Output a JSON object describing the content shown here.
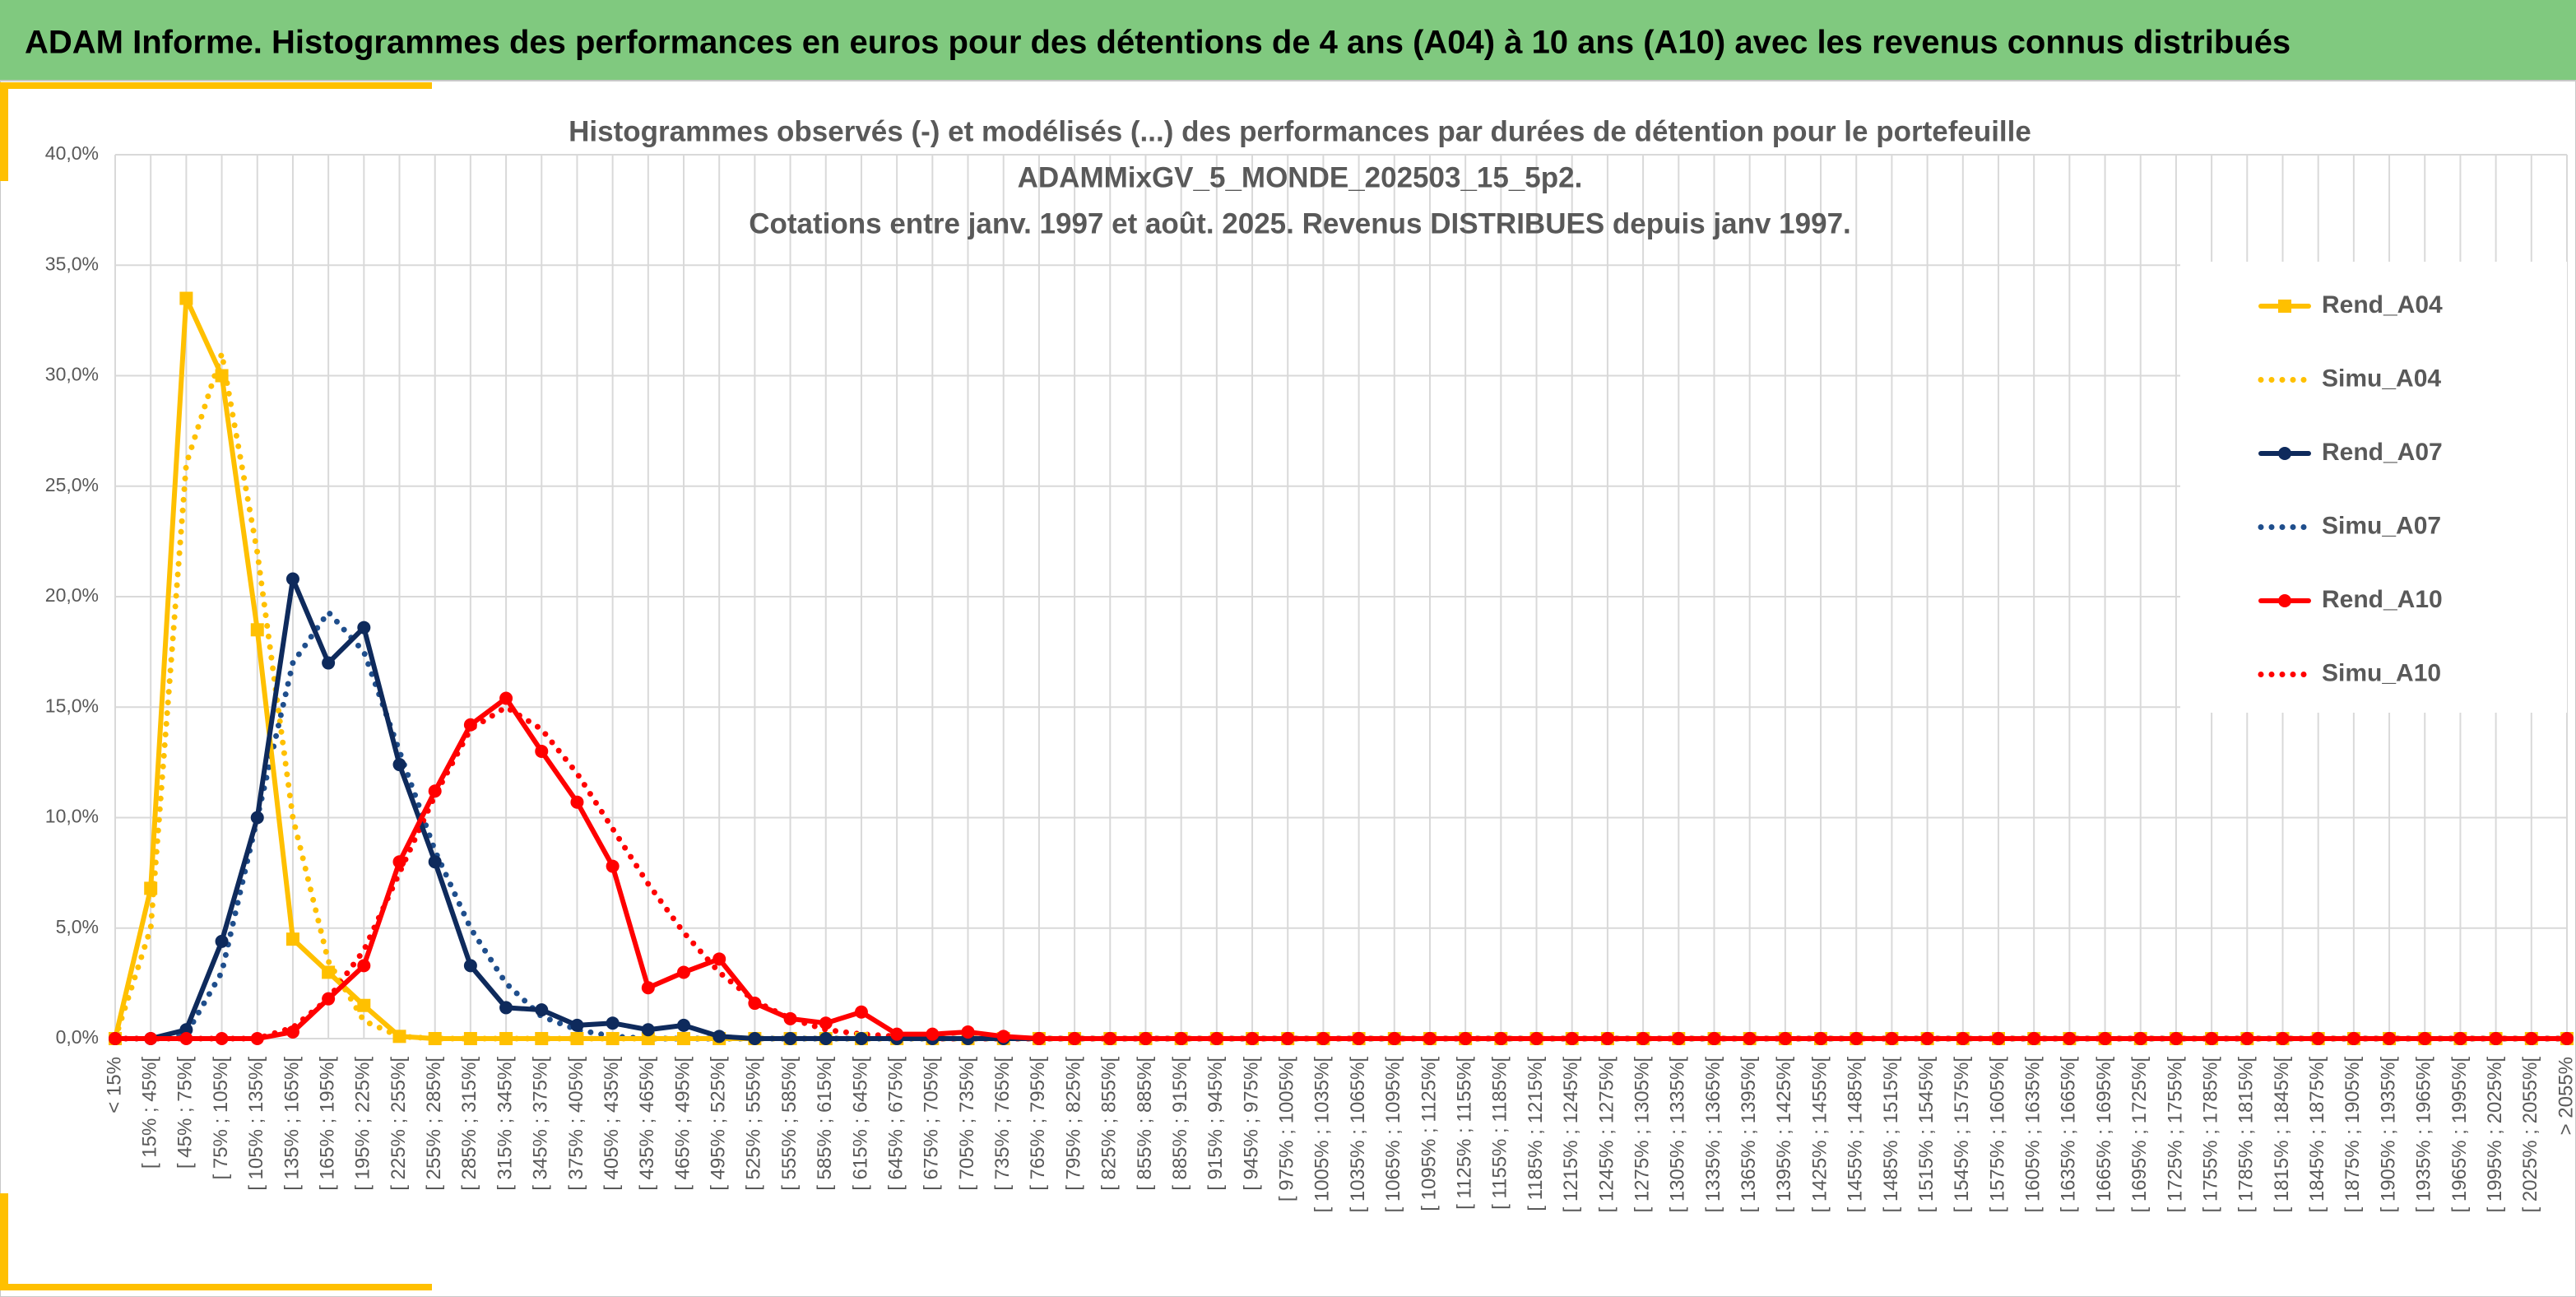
{
  "header": "ADAM Informe. Histogrammes des performances en euros pour des détentions de 4 ans (A04) à 10 ans (A10) avec les revenus connus distribués",
  "chart_data": {
    "type": "line",
    "title": [
      "Histogrammes observés (-) et modélisés (...) des performances par durées de détention pour le portefeuille",
      "ADAMMixGV_5_MONDE_202503_15_5p2.",
      "Cotations entre janv. 1997 et août. 2025. Revenus DISTRIBUES depuis janv 1997."
    ],
    "categories": [
      "< 15%",
      "[ 15% ; 45%[",
      "[ 45% ; 75%[",
      "[ 75% ; 105%[",
      "[ 105% ; 135%[",
      "[ 135% ; 165%[",
      "[ 165% ; 195%[",
      "[ 195% ; 225%[",
      "[ 225% ; 255%[",
      "[ 255% ; 285%[",
      "[ 285% ; 315%[",
      "[ 315% ; 345%[",
      "[ 345% ; 375%[",
      "[ 375% ; 405%[",
      "[ 405% ; 435%[",
      "[ 435% ; 465%[",
      "[ 465% ; 495%[",
      "[ 495% ; 525%[",
      "[ 525% ; 555%[",
      "[ 555% ; 585%[",
      "[ 585% ; 615%[",
      "[ 615% ; 645%[",
      "[ 645% ; 675%[",
      "[ 675% ; 705%[",
      "[ 705% ; 735%[",
      "[ 735% ; 765%[",
      "[ 765% ; 795%[",
      "[ 795% ; 825%[",
      "[ 825% ; 855%[",
      "[ 855% ; 885%[",
      "[ 885% ; 915%[",
      "[ 915% ; 945%[",
      "[ 945% ; 975%[",
      "[ 975% ; 1005%[",
      "[ 1005% ; 1035%[",
      "[ 1035% ; 1065%[",
      "[ 1065% ; 1095%[",
      "[ 1095% ; 1125%[",
      "[ 1125% ; 1155%[",
      "[ 1155% ; 1185%[",
      "[ 1185% ; 1215%[",
      "[ 1215% ; 1245%[",
      "[ 1245% ; 1275%[",
      "[ 1275% ; 1305%[",
      "[ 1305% ; 1335%[",
      "[ 1335% ; 1365%[",
      "[ 1365% ; 1395%[",
      "[ 1395% ; 1425%[",
      "[ 1425% ; 1455%[",
      "[ 1455% ; 1485%[",
      "[ 1485% ; 1515%[",
      "[ 1515% ; 1545%[",
      "[ 1545% ; 1575%[",
      "[ 1575% ; 1605%[",
      "[ 1605% ; 1635%[",
      "[ 1635% ; 1665%[",
      "[ 1665% ; 1695%[",
      "[ 1695% ; 1725%[",
      "[ 1725% ; 1755%[",
      "[ 1755% ; 1785%[",
      "[ 1785% ; 1815%[",
      "[ 1815% ; 1845%[",
      "[ 1845% ; 1875%[",
      "[ 1875% ; 1905%[",
      "[ 1905% ; 1935%[",
      "[ 1935% ; 1965%[",
      "[ 1965% ; 1995%[",
      "[ 1995% ; 2025%[",
      "[ 2025% ; 2055%[",
      "> 2055%"
    ],
    "series": [
      {
        "name": "Rend_A04",
        "color": "#ffc000",
        "style": "solid",
        "marker": "square",
        "values": [
          0,
          6.8,
          33.5,
          30,
          18.5,
          4.5,
          3.0,
          1.5,
          0.1,
          0,
          0,
          0,
          0,
          0,
          0,
          0,
          0,
          0,
          0,
          0,
          0,
          0,
          0,
          0,
          0,
          0,
          0,
          0,
          0,
          0,
          0,
          0,
          0,
          0,
          0,
          0,
          0,
          0,
          0,
          0,
          0,
          0,
          0,
          0,
          0,
          0,
          0,
          0,
          0,
          0,
          0,
          0,
          0,
          0,
          0,
          0,
          0,
          0,
          0,
          0,
          0,
          0,
          0,
          0,
          0,
          0,
          0,
          0,
          0,
          0
        ]
      },
      {
        "name": "Simu_A04",
        "color": "#ffc000",
        "style": "dotted",
        "marker": null,
        "values": [
          0,
          5,
          26,
          31,
          22,
          10,
          3.5,
          0.8,
          0.1,
          0,
          0,
          0,
          0,
          0,
          0,
          0,
          0,
          0,
          0,
          0,
          0,
          0,
          0,
          0,
          0,
          0,
          0,
          0,
          0,
          0,
          0,
          0,
          0,
          0,
          0,
          0,
          0,
          0,
          0,
          0,
          0,
          0,
          0,
          0,
          0,
          0,
          0,
          0,
          0,
          0,
          0,
          0,
          0,
          0,
          0,
          0,
          0,
          0,
          0,
          0,
          0,
          0,
          0,
          0,
          0,
          0,
          0,
          0,
          0,
          0
        ]
      },
      {
        "name": "Rend_A07",
        "color": "#0e2a5c",
        "style": "solid",
        "marker": "circle",
        "values": [
          0,
          0,
          0.4,
          4.4,
          10,
          20.8,
          17,
          18.6,
          12.4,
          8.0,
          3.3,
          1.4,
          1.3,
          0.6,
          0.7,
          0.4,
          0.6,
          0.1,
          0,
          0,
          0,
          0,
          0,
          0,
          0,
          0,
          0,
          0,
          0,
          0,
          0,
          0,
          0,
          0,
          0,
          0,
          0,
          0,
          0,
          0,
          0,
          0,
          0,
          0,
          0,
          0,
          0,
          0,
          0,
          0,
          0,
          0,
          0,
          0,
          0,
          0,
          0,
          0,
          0,
          0,
          0,
          0,
          0,
          0,
          0,
          0,
          0,
          0,
          0,
          0
        ]
      },
      {
        "name": "Simu_A07",
        "color": "#1f4e8c",
        "style": "dotted",
        "marker": null,
        "values": [
          0,
          0,
          0.2,
          3,
          10,
          17,
          19.3,
          17.5,
          13,
          8.5,
          5,
          2.5,
          1.0,
          0.4,
          0.1,
          0,
          0,
          0,
          0,
          0,
          0,
          0,
          0,
          0,
          0,
          0,
          0,
          0,
          0,
          0,
          0,
          0,
          0,
          0,
          0,
          0,
          0,
          0,
          0,
          0,
          0,
          0,
          0,
          0,
          0,
          0,
          0,
          0,
          0,
          0,
          0,
          0,
          0,
          0,
          0,
          0,
          0,
          0,
          0,
          0,
          0,
          0,
          0,
          0,
          0,
          0,
          0,
          0,
          0,
          0
        ]
      },
      {
        "name": "Rend_A10",
        "color": "#ff0000",
        "style": "solid",
        "marker": "circle",
        "values": [
          0,
          0,
          0,
          0,
          0,
          0.3,
          1.8,
          3.3,
          8.0,
          11.2,
          14.2,
          15.4,
          13.0,
          10.7,
          7.8,
          2.3,
          3.0,
          3.6,
          1.6,
          0.9,
          0.7,
          1.2,
          0.2,
          0.2,
          0.3,
          0.1,
          0,
          0,
          0,
          0,
          0,
          0,
          0,
          0,
          0,
          0,
          0,
          0,
          0,
          0,
          0,
          0,
          0,
          0,
          0,
          0,
          0,
          0,
          0,
          0,
          0,
          0,
          0,
          0,
          0,
          0,
          0,
          0,
          0,
          0,
          0,
          0,
          0,
          0,
          0,
          0,
          0,
          0,
          0,
          0
        ]
      },
      {
        "name": "Simu_A10",
        "color": "#ff0000",
        "style": "dotted",
        "marker": null,
        "values": [
          0,
          0,
          0,
          0,
          0,
          0.5,
          1.8,
          4,
          7.5,
          11,
          14,
          15,
          14,
          12,
          9.5,
          7,
          4.8,
          3,
          1.7,
          0.9,
          0.4,
          0.2,
          0.1,
          0,
          0,
          0,
          0,
          0,
          0,
          0,
          0,
          0,
          0,
          0,
          0,
          0,
          0,
          0,
          0,
          0,
          0,
          0,
          0,
          0,
          0,
          0,
          0,
          0,
          0,
          0,
          0,
          0,
          0,
          0,
          0,
          0,
          0,
          0,
          0,
          0,
          0,
          0,
          0,
          0,
          0,
          0,
          0,
          0,
          0,
          0
        ]
      }
    ],
    "ylim": [
      0,
      40
    ],
    "yticks": [
      {
        "value": 0,
        "label": "0,0%"
      },
      {
        "value": 5,
        "label": "5,0%"
      },
      {
        "value": 10,
        "label": "10,0%"
      },
      {
        "value": 15,
        "label": "15,0%"
      },
      {
        "value": 20,
        "label": "20,0%"
      },
      {
        "value": 25,
        "label": "25,0%"
      },
      {
        "value": 30,
        "label": "30,0%"
      },
      {
        "value": 35,
        "label": "35,0%"
      },
      {
        "value": 40,
        "label": "40,0%"
      }
    ],
    "grid": true,
    "legend": "right"
  }
}
